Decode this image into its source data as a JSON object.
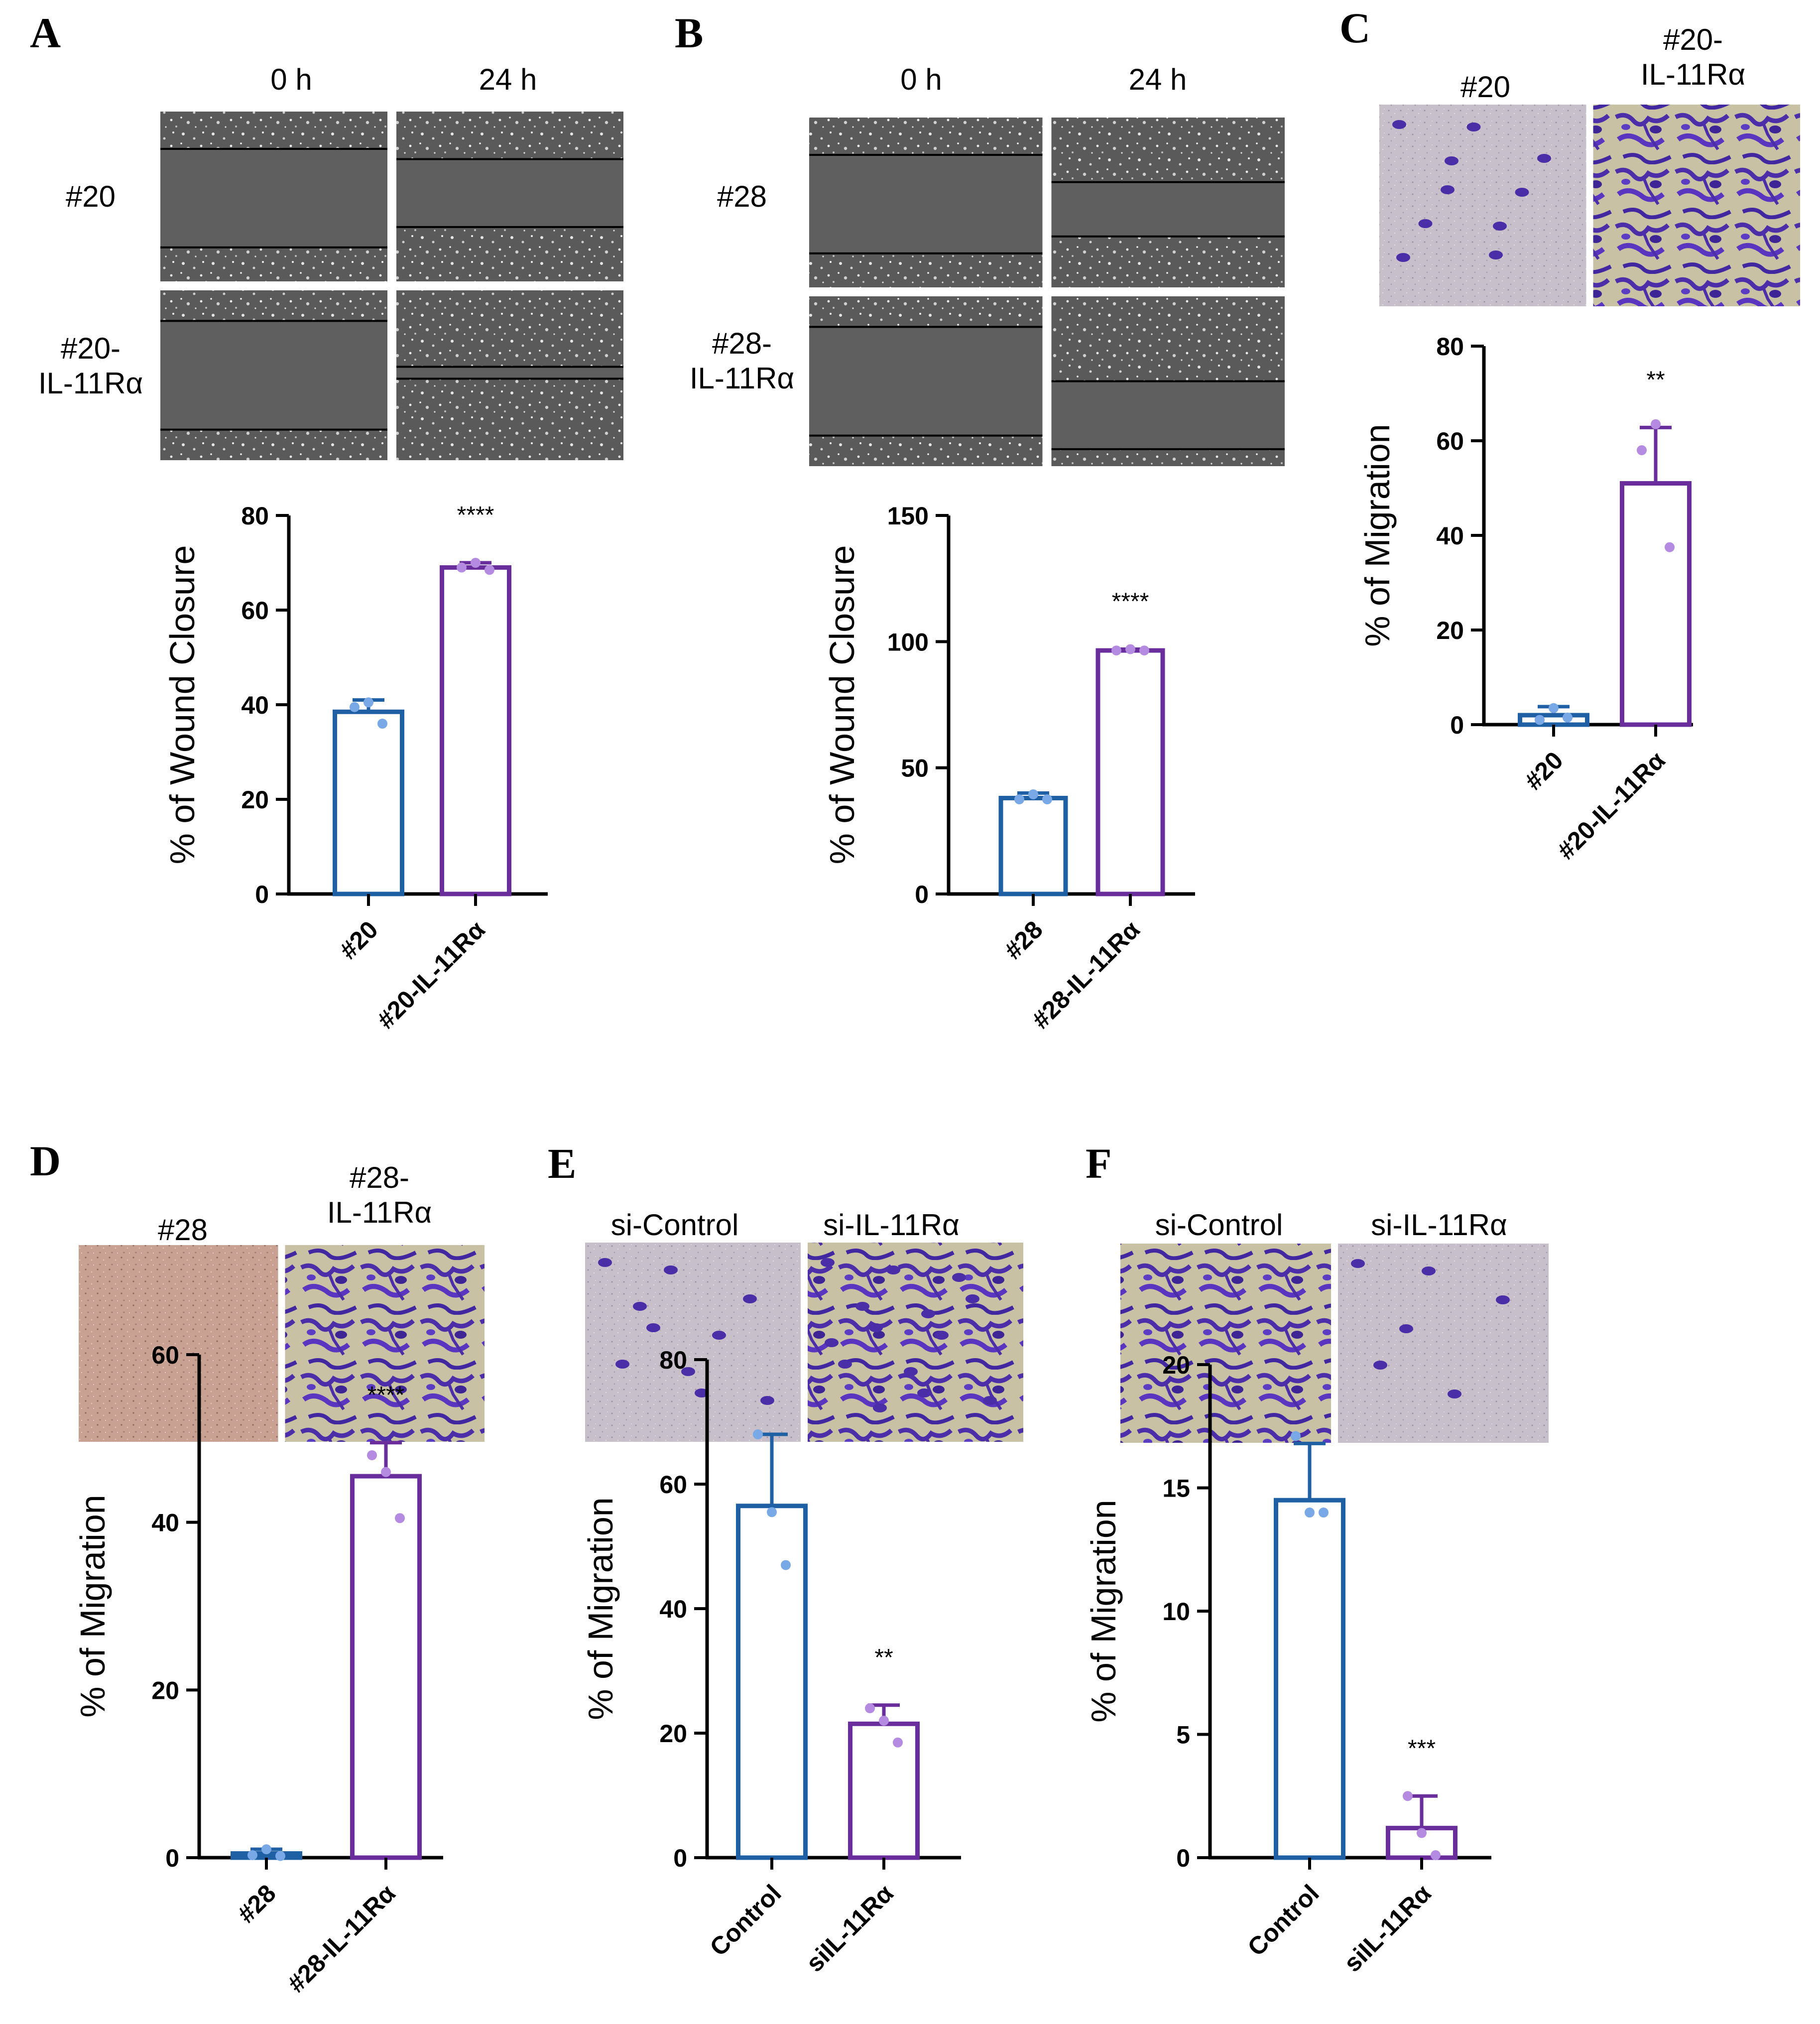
{
  "colors": {
    "blue": "#1f5fa3",
    "purple": "#6a2d9c",
    "dot_blue": "#79a8e6",
    "dot_purple": "#b48be0",
    "axis": "#000000"
  },
  "panels": [
    {
      "letter": "A",
      "image_headers": [
        "0 h",
        "24 h"
      ],
      "row_labels": [
        [
          "#20"
        ],
        [
          "#20-",
          "IL-11Rα"
        ]
      ],
      "ylabel": "% of Wound Closure",
      "ylim": [
        0,
        80
      ],
      "yticks": [
        "0",
        "20",
        "40",
        "60",
        "80"
      ],
      "categories": [
        "#20",
        "#20-IL-11Rα"
      ],
      "significance": "****"
    },
    {
      "letter": "B",
      "image_headers": [
        "0 h",
        "24 h"
      ],
      "row_labels": [
        [
          "#28"
        ],
        [
          "#28-",
          "IL-11Rα"
        ]
      ],
      "ylabel": "% of Wound Closure",
      "ylim": [
        0,
        150
      ],
      "yticks": [
        "0",
        "50",
        "100",
        "150"
      ],
      "categories": [
        "#28",
        "#28-IL-11Rα"
      ],
      "significance": "****"
    },
    {
      "letter": "C",
      "image_headers": [
        [
          "#20"
        ],
        [
          "#20-",
          "IL-11Rα"
        ]
      ],
      "ylabel": "% of Migration",
      "ylim": [
        0,
        80
      ],
      "yticks": [
        "0",
        "20",
        "40",
        "60",
        "80"
      ],
      "categories": [
        "#20",
        "#20-IL-11Rα"
      ],
      "significance": "**"
    },
    {
      "letter": "D",
      "image_headers": [
        [
          "#28"
        ],
        [
          "#28-",
          "IL-11Rα"
        ]
      ],
      "ylabel": "% of Migration",
      "ylim": [
        0,
        60
      ],
      "yticks": [
        "0",
        "20",
        "40",
        "60"
      ],
      "categories": [
        "#28",
        "#28-IL-11Rα"
      ],
      "significance": "****"
    },
    {
      "letter": "E",
      "image_headers": [
        [
          "si-Control"
        ],
        [
          "si-IL-11Rα"
        ]
      ],
      "ylabel": "% of Migration",
      "ylim": [
        0,
        80
      ],
      "yticks": [
        "0",
        "20",
        "40",
        "60",
        "80"
      ],
      "categories": [
        "Control",
        "siIL-11Rα"
      ],
      "significance": "**"
    },
    {
      "letter": "F",
      "image_headers": [
        [
          "si-Control"
        ],
        [
          "si-IL-11Rα"
        ]
      ],
      "ylabel": "% of Migration",
      "ylim": [
        0,
        20
      ],
      "yticks": [
        "0",
        "5",
        "10",
        "15",
        "20"
      ],
      "categories": [
        "Control",
        "siIL-11Rα"
      ],
      "significance": "***"
    }
  ],
  "chart_data": [
    {
      "panel": "A",
      "type": "bar",
      "title": "",
      "xlabel": "",
      "ylabel": "% of Wound Closure",
      "ylim": [
        0,
        80
      ],
      "categories": [
        "#20",
        "#20-IL-11Rα"
      ],
      "values": [
        38.5,
        69.0
      ],
      "error": [
        2.5,
        1.0
      ],
      "points": [
        [
          39.5,
          40.5,
          36.0
        ],
        [
          69.0,
          70.0,
          68.5
        ]
      ],
      "annotations": [
        "****"
      ]
    },
    {
      "panel": "B",
      "type": "bar",
      "title": "",
      "xlabel": "",
      "ylabel": "% of Wound Closure",
      "ylim": [
        0,
        150
      ],
      "categories": [
        "#28",
        "#28-IL-11Rα"
      ],
      "values": [
        38,
        96.5
      ],
      "error": [
        2.0,
        0.5
      ],
      "points": [
        [
          37.5,
          39.5,
          37.5
        ],
        [
          96.5,
          97.0,
          96.5
        ]
      ],
      "annotations": [
        "****"
      ]
    },
    {
      "panel": "C",
      "type": "bar",
      "title": "",
      "xlabel": "",
      "ylabel": "% of Migration",
      "ylim": [
        0,
        80
      ],
      "categories": [
        "#20",
        "#20-IL-11Rα"
      ],
      "values": [
        2.0,
        51.0
      ],
      "error": [
        1.8,
        11.8
      ],
      "points": [
        [
          1.0,
          3.5,
          1.5
        ],
        [
          58.0,
          63.5,
          37.5
        ]
      ],
      "annotations": [
        "**"
      ]
    },
    {
      "panel": "D",
      "type": "bar",
      "title": "",
      "xlabel": "",
      "ylabel": "% of Migration",
      "ylim": [
        0,
        60
      ],
      "categories": [
        "#28",
        "#28-IL-11Rα"
      ],
      "values": [
        0.5,
        45.5
      ],
      "error": [
        0.5,
        4.0
      ],
      "points": [
        [
          0.3,
          1.0,
          0.2
        ],
        [
          48.0,
          46.0,
          40.5
        ]
      ],
      "annotations": [
        "****"
      ]
    },
    {
      "panel": "E",
      "type": "bar",
      "title": "",
      "xlabel": "",
      "ylabel": "% of Migration",
      "ylim": [
        0,
        80
      ],
      "categories": [
        "Control",
        "siIL-11Rα"
      ],
      "values": [
        56.5,
        21.5
      ],
      "error": [
        11.5,
        3.0
      ],
      "points": [
        [
          68.0,
          55.5,
          47.0
        ],
        [
          24.0,
          22.0,
          18.5
        ]
      ],
      "annotations": [
        "**"
      ]
    },
    {
      "panel": "F",
      "type": "bar",
      "title": "",
      "xlabel": "",
      "ylabel": "% of Migration",
      "ylim": [
        0,
        20
      ],
      "categories": [
        "Control",
        "siIL-11Rα"
      ],
      "values": [
        14.5,
        1.2
      ],
      "error": [
        2.3,
        1.3
      ],
      "points": [
        [
          17.1,
          14.0,
          14.0
        ],
        [
          2.5,
          1.0,
          0.1
        ]
      ],
      "annotations": [
        "***"
      ]
    }
  ]
}
